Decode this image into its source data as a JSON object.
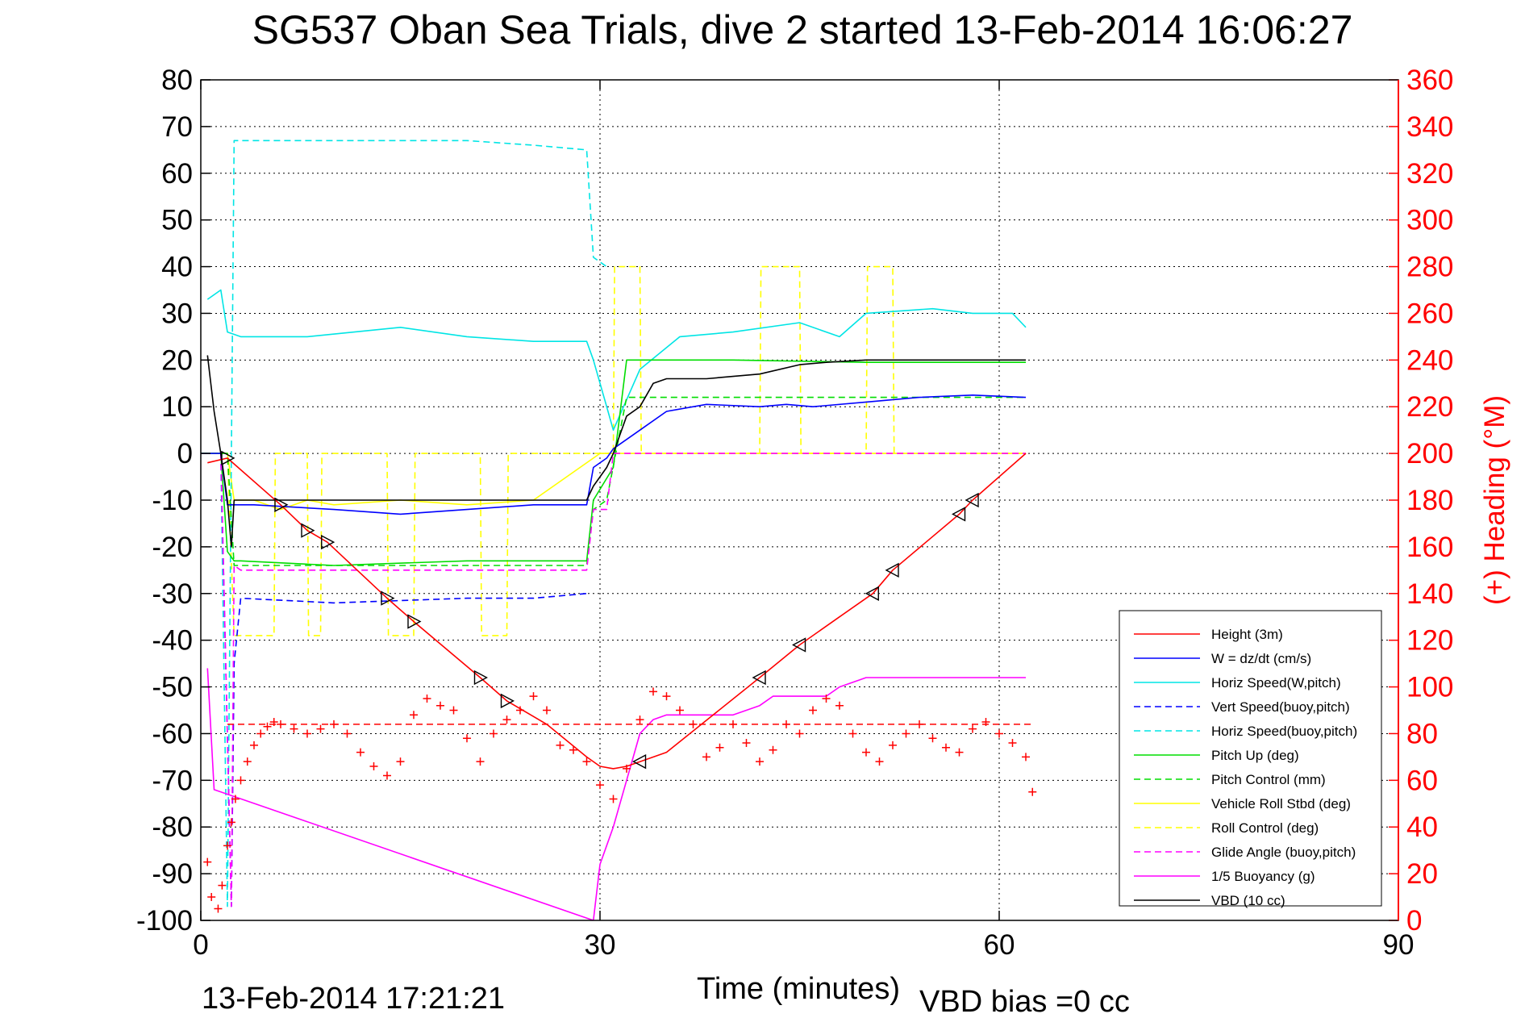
{
  "title": "SG537 Oban Sea Trials, dive 2 started 13-Feb-2014 16:06:27",
  "footer": {
    "timestamp": "13-Feb-2014 17:21:21",
    "vbd_bias": "VBD bias =0 cc"
  },
  "chart_data": {
    "type": "line",
    "title": "SG537 Oban Sea Trials, dive 2 started 13-Feb-2014 16:06:27",
    "xlabel": "Time (minutes)",
    "ylabel_right": "(+) Heading (°M)",
    "xlim": [
      0,
      90
    ],
    "ylim_left": [
      -100,
      80
    ],
    "ylim_right": [
      0,
      360
    ],
    "x_ticks": [
      "0",
      "30",
      "60",
      "90"
    ],
    "y_left_ticks": [
      "80",
      "70",
      "60",
      "50",
      "40",
      "30",
      "20",
      "10",
      "0",
      "-10",
      "-20",
      "-30",
      "-40",
      "-50",
      "-60",
      "-70",
      "-80",
      "-90",
      "-100"
    ],
    "y_right_ticks": [
      "360",
      "340",
      "320",
      "300",
      "280",
      "260",
      "240",
      "220",
      "200",
      "180",
      "160",
      "140",
      "120",
      "100",
      "80",
      "60",
      "40",
      "20",
      "0"
    ],
    "grid": true,
    "legend_position": "bottom-right",
    "series": [
      {
        "name": "Height (3m)",
        "color": "#ff0000",
        "style": "solid",
        "x": [
          0.5,
          2,
          6,
          8,
          9.5,
          14,
          16,
          21,
          23,
          26,
          29,
          30,
          31,
          32,
          33,
          35,
          42,
          45,
          48,
          50.5,
          52,
          57,
          58,
          62
        ],
        "y": [
          -2,
          -1,
          -11,
          -16.5,
          -19,
          -31,
          -36,
          -48,
          -53,
          -58,
          -65,
          -67,
          -67.5,
          -67,
          -66,
          -64,
          -48,
          -41,
          -35,
          -30,
          -25,
          -13,
          -10,
          0
        ]
      },
      {
        "name": "W = dz/dt (cm/s)",
        "color": "#0000ff",
        "style": "solid",
        "x": [
          0,
          1.5,
          2,
          4,
          10,
          15,
          20,
          25,
          29,
          29.5,
          30.5,
          31,
          33,
          35,
          38,
          42,
          44,
          46,
          50,
          54,
          58,
          62
        ],
        "y": [
          0,
          0,
          -11,
          -11,
          -12,
          -13,
          -12,
          -11,
          -11,
          -3,
          -1,
          1,
          5,
          9,
          10.5,
          10,
          10.5,
          10,
          11,
          12,
          12.5,
          12
        ]
      },
      {
        "name": "Horiz Speed(W,pitch)",
        "color": "#00e5e5",
        "style": "solid",
        "x": [
          0.5,
          1.5,
          2,
          3,
          8,
          15,
          20,
          25,
          29,
          29.5,
          30.5,
          31,
          33,
          36,
          40,
          45,
          48,
          50,
          55,
          58,
          61,
          62
        ],
        "y": [
          33,
          35,
          26,
          25,
          25,
          27,
          25,
          24,
          24,
          20,
          10,
          5,
          18,
          25,
          26,
          28,
          25,
          30,
          31,
          30,
          30,
          27
        ]
      },
      {
        "name": "Vert Speed(buoy,pitch)",
        "color": "#0000ff",
        "style": "dashed",
        "x": [
          1.5,
          2.3,
          2.5,
          3,
          10,
          20,
          25,
          29
        ],
        "y": [
          0,
          -97,
          -45,
          -31,
          -32,
          -31,
          -31,
          -30
        ]
      },
      {
        "name": "Horiz Speed(buoy,pitch)",
        "color": "#00e5e5",
        "style": "dashed",
        "x": [
          1.5,
          2,
          2.5,
          3,
          10,
          20,
          25,
          29,
          29.5,
          30.5
        ],
        "y": [
          0,
          -97,
          67,
          67,
          67,
          67,
          66,
          65,
          42,
          40
        ]
      },
      {
        "name": "Pitch Up (deg)",
        "color": "#00dd00",
        "style": "solid",
        "x": [
          0,
          1.5,
          2,
          2.5,
          3,
          10,
          20,
          29,
          29.5,
          31,
          32,
          35,
          40,
          50,
          55,
          62
        ],
        "y": [
          0,
          0,
          -21,
          -23,
          -23,
          -24,
          -23,
          -23,
          -10,
          -3,
          20,
          20,
          20,
          19.5,
          19.5,
          19.5
        ]
      },
      {
        "name": "Pitch Control (mm)",
        "color": "#00dd00",
        "style": "dashed",
        "x": [
          0,
          2,
          2.5,
          29,
          29.5,
          30.5,
          32,
          62
        ],
        "y": [
          0,
          0,
          -24,
          -24,
          -12,
          -10,
          12,
          12
        ]
      },
      {
        "name": "Vehicle Roll Stbd (deg)",
        "color": "#ffff00",
        "style": "solid",
        "x": [
          0,
          2,
          2.5,
          4,
          6,
          8,
          10,
          15,
          20,
          25,
          30,
          35,
          40,
          45,
          50,
          55,
          60,
          62
        ],
        "y": [
          0,
          0,
          -10,
          -10,
          -12,
          -10,
          -11,
          -10,
          -11,
          -10,
          0,
          0,
          0,
          0,
          0,
          0,
          0,
          0
        ]
      },
      {
        "name": "Roll Control (deg)",
        "color": "#ffff00",
        "style": "dashed",
        "x": [
          0,
          2,
          2.5,
          5.5,
          5.6,
          8,
          8.1,
          9,
          9.1,
          14,
          14.1,
          16,
          16.1,
          21,
          21.1,
          23,
          23.1,
          29,
          30,
          31,
          31.1,
          33,
          33.1,
          42,
          42.1,
          45,
          45.1,
          50,
          50.1,
          52,
          52.1,
          62
        ],
        "y": [
          0,
          0,
          -39,
          -39,
          0,
          0,
          -39,
          -39,
          0,
          0,
          -39,
          -39,
          0,
          0,
          -39,
          -39,
          0,
          0,
          0,
          0,
          40,
          40,
          0,
          0,
          40,
          40,
          0,
          0,
          40,
          40,
          0,
          0
        ]
      },
      {
        "name": "Glide Angle (buoy,pitch)",
        "color": "#ff00ff",
        "style": "dashed",
        "x": [
          1.5,
          2.3,
          2.5,
          3,
          10,
          20,
          29,
          29.5,
          30.5,
          31,
          62
        ],
        "y": [
          0,
          -97,
          -24,
          -25,
          -25,
          -25,
          -25,
          -12,
          -12,
          0,
          0
        ]
      },
      {
        "name": "1/5 Buoyancy (g)",
        "color": "#ff00ff",
        "style": "solid",
        "x": [
          0.5,
          1,
          29.5,
          30,
          31,
          32,
          33,
          34,
          35,
          40,
          42,
          43,
          47,
          48,
          50,
          55,
          60,
          62
        ],
        "y": [
          -46,
          -72,
          -100,
          -88,
          -80,
          -70,
          -60,
          -57,
          -56,
          -56,
          -54,
          -52,
          -52,
          -50,
          -48,
          -48,
          -48,
          -48
        ]
      },
      {
        "name": "VBD (10 cc)",
        "color": "#000000",
        "style": "solid",
        "x": [
          0.5,
          1,
          1.5,
          2,
          2.3,
          2.5,
          29,
          29.5,
          30.5,
          31,
          32,
          33,
          34,
          35,
          38,
          40,
          42,
          45,
          47,
          50,
          52,
          62
        ],
        "y": [
          21,
          9,
          0,
          -10,
          -20,
          -10,
          -10,
          -7,
          -3,
          0,
          8,
          10,
          15,
          16,
          16,
          16.5,
          17,
          19,
          19.5,
          20,
          20,
          20
        ]
      }
    ],
    "heading": {
      "axis": "right",
      "color": "#ff0000",
      "marker": "+",
      "x": [
        0.5,
        0.8,
        1.3,
        1.6,
        2,
        2.3,
        2.6,
        3,
        3.5,
        4,
        4.5,
        5,
        5.5,
        6,
        7,
        8,
        9,
        10,
        11,
        12,
        13,
        14,
        15,
        16,
        17,
        18,
        19,
        20,
        21,
        22,
        23,
        24,
        25,
        26,
        27,
        28,
        29,
        30,
        31,
        32,
        33,
        34,
        35,
        36,
        37,
        38,
        39,
        40,
        41,
        42,
        43,
        44,
        45,
        46,
        47,
        48,
        49,
        50,
        51,
        52,
        53,
        54,
        55,
        56,
        57,
        58,
        59,
        60,
        61,
        62,
        62.5
      ],
      "y": [
        25,
        10,
        5,
        15,
        32,
        42,
        52,
        60,
        68,
        75,
        80,
        83,
        85,
        84,
        82,
        80,
        82,
        84,
        80,
        72,
        66,
        62,
        68,
        88,
        95,
        92,
        90,
        78,
        68,
        80,
        86,
        90,
        96,
        90,
        75,
        73,
        68,
        58,
        52,
        65,
        86,
        98,
        96,
        90,
        84,
        70,
        74,
        84,
        76,
        68,
        73,
        84,
        80,
        90,
        95,
        92,
        80,
        72,
        68,
        75,
        80,
        84,
        78,
        74,
        72,
        82,
        85,
        80,
        76,
        70,
        55
      ]
    },
    "heading_reference": {
      "axis": "right",
      "y": 84,
      "color": "#ff0000",
      "style": "dashed"
    },
    "height_markers": {
      "color": "#000000",
      "shape": "triangle",
      "down_x": [
        2,
        6,
        8,
        9.5,
        14,
        16,
        21,
        23
      ],
      "down_y": [
        -1,
        -11,
        -16.5,
        -19,
        -31,
        -36,
        -48,
        -53
      ],
      "up_x": [
        33,
        42,
        45,
        50.5,
        52,
        57,
        58
      ],
      "up_y": [
        -66,
        -48,
        -41,
        -30,
        -25,
        -13,
        -10
      ]
    }
  }
}
